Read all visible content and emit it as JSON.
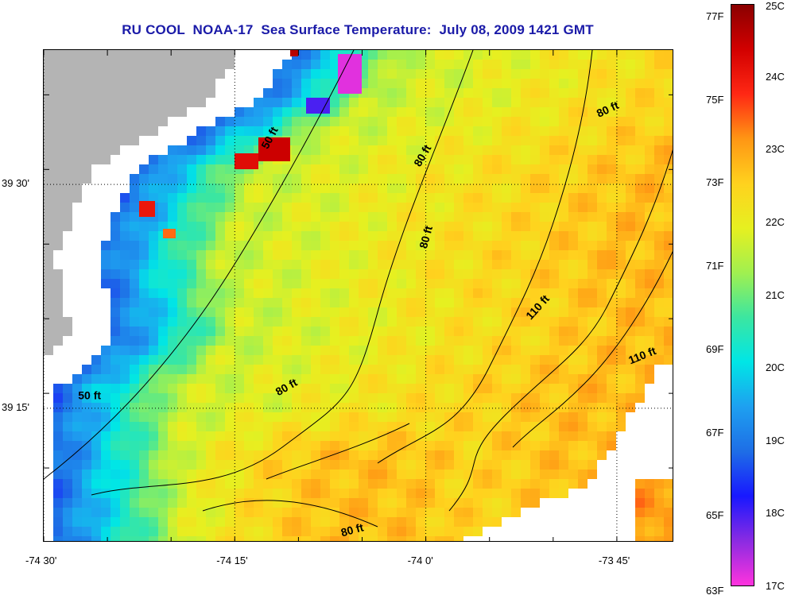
{
  "title": "RU COOL  NOAA-17  Sea Surface Temperature:  July 08, 2009 1421 GMT",
  "map": {
    "lon_range": [
      -74.5,
      -73.675
    ],
    "lat_range": [
      39.1,
      39.65
    ],
    "x_ticks": [
      {
        "value": -74.5,
        "label": "-74 30'"
      },
      {
        "value": -74.25,
        "label": "-74 15'"
      },
      {
        "value": -74.0,
        "label": "-74 0'"
      },
      {
        "value": -73.75,
        "label": "-73 45'"
      }
    ],
    "y_ticks": [
      {
        "value": 39.5,
        "label": "39 30'"
      },
      {
        "value": 39.25,
        "label": "39 15'"
      }
    ],
    "land_color": "#b4b4b4",
    "cloud_color": "#ffffff",
    "contour_labels": [
      {
        "text": "50 ft",
        "lon": -74.2,
        "lat": 39.55,
        "angle": -62
      },
      {
        "text": "80 ft",
        "lon": -74.0,
        "lat": 39.53,
        "angle": -60
      },
      {
        "text": "80 ft",
        "lon": -73.76,
        "lat": 39.58,
        "angle": -25
      },
      {
        "text": "80 ft",
        "lon": -73.995,
        "lat": 39.44,
        "angle": -75
      },
      {
        "text": "110 ft",
        "lon": -73.85,
        "lat": 39.36,
        "angle": -48
      },
      {
        "text": "110 ft",
        "lon": -73.715,
        "lat": 39.305,
        "angle": -22
      },
      {
        "text": "50 ft",
        "lon": -74.44,
        "lat": 39.26,
        "angle": 0
      },
      {
        "text": "80 ft",
        "lon": -74.18,
        "lat": 39.27,
        "angle": -30
      },
      {
        "text": "80 ft",
        "lon": -74.095,
        "lat": 39.11,
        "angle": -15
      }
    ]
  },
  "colorbar": {
    "celsius_ticks": [
      "25C",
      "24C",
      "23C",
      "22C",
      "21C",
      "20C",
      "19C",
      "18C",
      "17C"
    ],
    "fahrenheit_ticks": [
      "77F",
      "75F",
      "73F",
      "71F",
      "69F",
      "67F",
      "65F",
      "63F"
    ],
    "range_c": [
      17,
      25
    ],
    "range_f": [
      63,
      77
    ],
    "palette": [
      "#ff33dd",
      "#8a2be2",
      "#1818ff",
      "#1e6ee6",
      "#1ea0f0",
      "#00e6e6",
      "#3ce6a0",
      "#a0f050",
      "#e6f020",
      "#ffd21e",
      "#ff9614",
      "#ff2814",
      "#d20000",
      "#8a0000"
    ]
  }
}
